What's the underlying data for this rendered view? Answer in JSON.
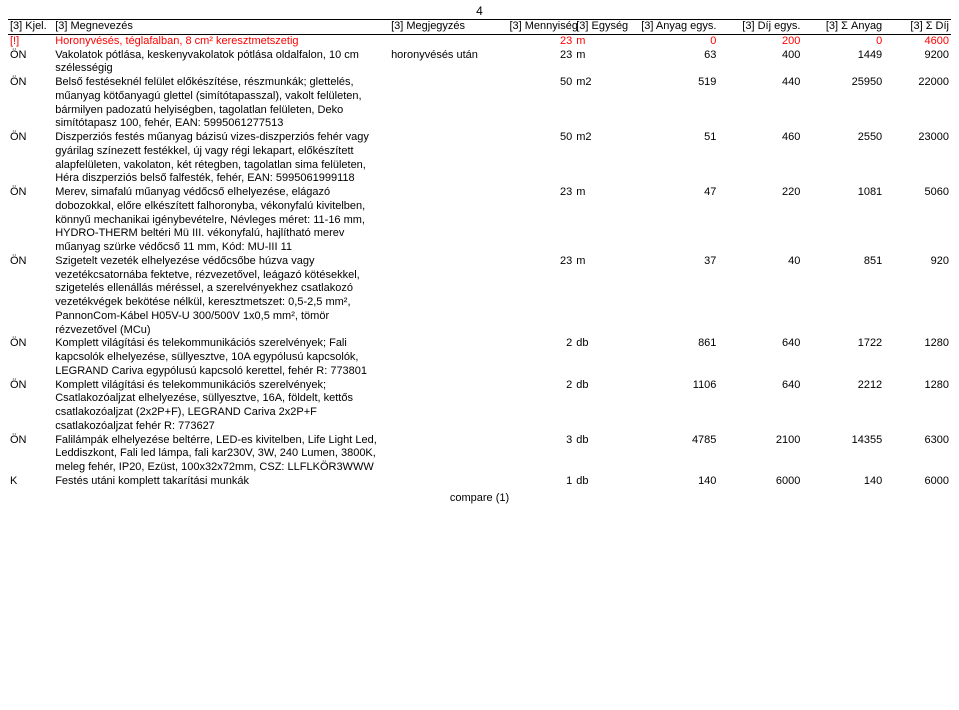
{
  "page_number": "4",
  "footer": "compare (1)",
  "headers": {
    "kjel": "[3] Kjel.",
    "megn": "[3] Megnevezés",
    "megj": "[3] Megjegyzés",
    "menny": "[3] Mennyiség",
    "egys": "[3] Egység",
    "anyag_egys": "[3] Anyag egys.",
    "dij_egys": "[3] Díj egys.",
    "sum_anyag": "[3] Σ Anyag",
    "sum_dij": "[3] Σ Díj"
  },
  "row_colors": {
    "normal": "#000000",
    "alert": "#ff0000"
  },
  "rows": [
    {
      "k": "[!]",
      "n": "Horonyvésés, téglafalban, 8 cm² keresztmetszetig",
      "j": "",
      "m": "23",
      "e": "m",
      "a": "0",
      "d": "200",
      "sa": "0",
      "sd": "4600",
      "c": "alert"
    },
    {
      "k": "ÖN",
      "n": "Vakolatok pótlása, keskenyvakolatok pótlása oldalfalon, 10 cm szélességig",
      "j": "horonyvésés után",
      "m": "23",
      "e": "m",
      "a": "63",
      "d": "400",
      "sa": "1449",
      "sd": "9200",
      "c": "normal"
    },
    {
      "k": "ÖN",
      "n": "Belső festéseknél felület előkészítése, részmunkák; glettelés, műanyag kötőanyagú glettel (simítótapasszal), vakolt felületen, bármilyen padozatú helyiségben, tagolatlan felületen, Deko simítótapasz 100, fehér, EAN: 5995061277513",
      "j": "",
      "m": "50",
      "e": "m2",
      "a": "519",
      "d": "440",
      "sa": "25950",
      "sd": "22000",
      "c": "normal"
    },
    {
      "k": "ÖN",
      "n": "Diszperziós festés műanyag bázisú vizes-diszperziós fehér vagy gyárilag színezett festékkel, új vagy régi lekapart, előkészített alapfelületen, vakolaton, két rétegben, tagolatlan sima felületen, Héra diszperziós belső falfesték, fehér, EAN: 5995061999118",
      "j": "",
      "m": "50",
      "e": "m2",
      "a": "51",
      "d": "460",
      "sa": "2550",
      "sd": "23000",
      "c": "normal"
    },
    {
      "k": "ÖN",
      "n": "Merev, simafalú műanyag védőcső elhelyezése, elágazó dobozokkal, előre elkészített falhoronyba, vékonyfalú kivitelben, könnyű mechanikai igénybevételre, Névleges méret: 11-16 mm, HYDRO-THERM beltéri Mü III. vékonyfalú, hajlítható merev műanyag szürke védőcső 11 mm, Kód: MU-III 11",
      "j": "",
      "m": "23",
      "e": "m",
      "a": "47",
      "d": "220",
      "sa": "1081",
      "sd": "5060",
      "c": "normal"
    },
    {
      "k": "ÖN",
      "n": "Szigetelt vezeték elhelyezése védőcsőbe húzva vagy vezetékcsatornába fektetve, rézvezetővel, leágazó kötésekkel, szigetelés ellenállás méréssel, a szerelvényekhez csatlakozó vezetékvégek bekötése nélkül, keresztmetszet: 0,5-2,5 mm², PannonCom-Kábel H05V-U 300/500V 1x0,5 mm², tömör rézvezetővel (MCu)",
      "j": "",
      "m": "23",
      "e": "m",
      "a": "37",
      "d": "40",
      "sa": "851",
      "sd": "920",
      "c": "normal"
    },
    {
      "k": "ÖN",
      "n": "Komplett világítási  és telekommunikációs szerelvények; Fali kapcsolók elhelyezése, süllyesztve, 10A egypólusú kapcsolók, LEGRAND Cariva egypólusú kapcsoló kerettel, fehér R: 773801",
      "j": "",
      "m": "2",
      "e": "db",
      "a": "861",
      "d": "640",
      "sa": "1722",
      "sd": "1280",
      "c": "normal"
    },
    {
      "k": "ÖN",
      "n": "Komplett világítási  és telekommunikációs szerelvények; Csatlakozóaljzat elhelyezése, süllyesztve, 16A, földelt, kettős csatlakozóaljzat (2x2P+F), LEGRAND Cariva 2x2P+F csatlakozóaljzat fehér R: 773627",
      "j": "",
      "m": "2",
      "e": "db",
      "a": "1106",
      "d": "640",
      "sa": "2212",
      "sd": "1280",
      "c": "normal"
    },
    {
      "k": "ÖN",
      "n": "Falilámpák elhelyezése beltérre, LED-es kivitelben, Life Light Led, Leddiszkont, Fali led lámpa, fali kar230V, 3W, 240 Lumen, 3800K, meleg fehér, IP20, Ezüst, 100x32x72mm, CSZ: LLFLKÖR3WWW",
      "j": "",
      "m": "3",
      "e": "db",
      "a": "4785",
      "d": "2100",
      "sa": "14355",
      "sd": "6300",
      "c": "normal"
    },
    {
      "k": "K",
      "n": "Festés utáni komplett takarítási munkák",
      "j": "",
      "m": "1",
      "e": "db",
      "a": "140",
      "d": "6000",
      "sa": "140",
      "sd": "6000",
      "c": "normal"
    }
  ]
}
